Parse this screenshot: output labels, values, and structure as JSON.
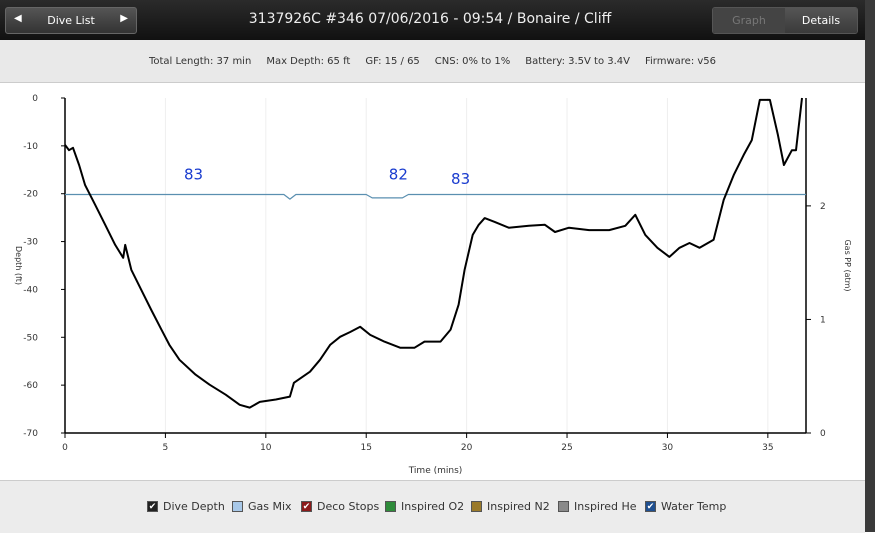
{
  "header": {
    "nav_button": "Dive List",
    "title": "3137926C #346 07/06/2016 - 09:54  / Bonaire / Cliff",
    "tabs": [
      "Graph",
      "Details"
    ]
  },
  "info": [
    "Total Length: 37 min",
    "Max Depth: 65 ft",
    "GF: 15 / 65",
    "CNS: 0% to 1%",
    "Battery: 3.5V to 3.4V",
    "Firmware: v56"
  ],
  "chart_data": {
    "type": "line",
    "x_label": "Time (mins)",
    "y_label": "Depth (ft)",
    "y2_label": "Gas PP (atm)",
    "xlim": [
      0,
      36.9
    ],
    "xticks": [
      0,
      5,
      10,
      15,
      20,
      25,
      30,
      35
    ],
    "ylim": [
      -70,
      0
    ],
    "yticks": [
      0,
      -10,
      -20,
      -30,
      -40,
      -50,
      -60,
      -70
    ],
    "y2lim": [
      0,
      2.95
    ],
    "y2ticks": [
      0,
      1,
      2
    ],
    "grid": true,
    "series": [
      {
        "name": "Dive Depth",
        "color": "#000000",
        "x": [
          0,
          0.2,
          0.4,
          0.7,
          1.0,
          1.5,
          2.0,
          2.5,
          2.9,
          3.0,
          3.3,
          3.8,
          4.3,
          4.8,
          5.2,
          5.7,
          6.5,
          7.2,
          8.0,
          8.7,
          9.2,
          9.7,
          10.5,
          11.2,
          11.4,
          12.2,
          12.7,
          13.2,
          13.7,
          14.2,
          14.7,
          15.2,
          15.9,
          16.7,
          17.4,
          17.9,
          18.7,
          19.2,
          19.6,
          19.9,
          20.3,
          20.6,
          20.9,
          21.4,
          22.1,
          23.1,
          23.9,
          24.4,
          25.1,
          26.1,
          27.1,
          27.9,
          28.4,
          28.9,
          29.5,
          30.1,
          30.6,
          31.1,
          31.6,
          32.3,
          32.8,
          33.3,
          33.8,
          34.2,
          34.6,
          35.1,
          35.5,
          35.8,
          36.2,
          36.4,
          36.7
        ],
        "values": [
          -9.8,
          -10.9,
          -10.4,
          -14.0,
          -18.2,
          -22.3,
          -26.5,
          -30.7,
          -33.4,
          -30.7,
          -35.9,
          -40.1,
          -44.3,
          -48.4,
          -51.6,
          -54.7,
          -57.8,
          -59.9,
          -62.0,
          -64.1,
          -64.7,
          -63.5,
          -63.0,
          -62.4,
          -59.5,
          -57.2,
          -54.7,
          -51.6,
          -49.9,
          -48.9,
          -47.8,
          -49.5,
          -50.9,
          -52.2,
          -52.2,
          -50.9,
          -50.9,
          -48.4,
          -43.2,
          -35.9,
          -28.6,
          -26.5,
          -25.1,
          -25.9,
          -27.1,
          -26.7,
          -26.5,
          -28.0,
          -27.1,
          -27.6,
          -27.6,
          -26.7,
          -24.4,
          -28.6,
          -31.3,
          -33.2,
          -31.3,
          -30.3,
          -31.3,
          -29.6,
          -21.3,
          -16.1,
          -11.9,
          -8.8,
          -0.4,
          -0.4,
          -7.7,
          -14.0,
          -10.9,
          -10.9,
          0
        ]
      },
      {
        "name": "Gas Mix",
        "color": "#5a8fb0",
        "axis": "y2",
        "x": [
          0,
          10.9,
          11.2,
          11.5,
          15.0,
          15.3,
          16.8,
          17.1,
          36.9
        ],
        "values": [
          2.1,
          2.1,
          2.06,
          2.1,
          2.1,
          2.07,
          2.07,
          2.1,
          2.1
        ]
      }
    ],
    "annotations": [
      {
        "text": "83",
        "x": 6.4,
        "y": -17
      },
      {
        "text": "82",
        "x": 16.6,
        "y": -17
      },
      {
        "text": "83",
        "x": 19.7,
        "y": -18
      }
    ],
    "annotation_color": "#1a3ccf",
    "legend": [
      {
        "name": "Dive Depth",
        "color": "#222222",
        "checked": true
      },
      {
        "name": "Gas Mix",
        "color": "#a8c8e8",
        "checked": false
      },
      {
        "name": "Deco Stops",
        "color": "#8b1a1a",
        "checked": true
      },
      {
        "name": "Inspired O2",
        "color": "#2e8b3a",
        "checked": false
      },
      {
        "name": "Inspired N2",
        "color": "#9a7a2a",
        "checked": false
      },
      {
        "name": "Inspired He",
        "color": "#8a8a8a",
        "checked": false
      },
      {
        "name": "Water Temp",
        "color": "#1f4f8f",
        "checked": true
      }
    ]
  }
}
